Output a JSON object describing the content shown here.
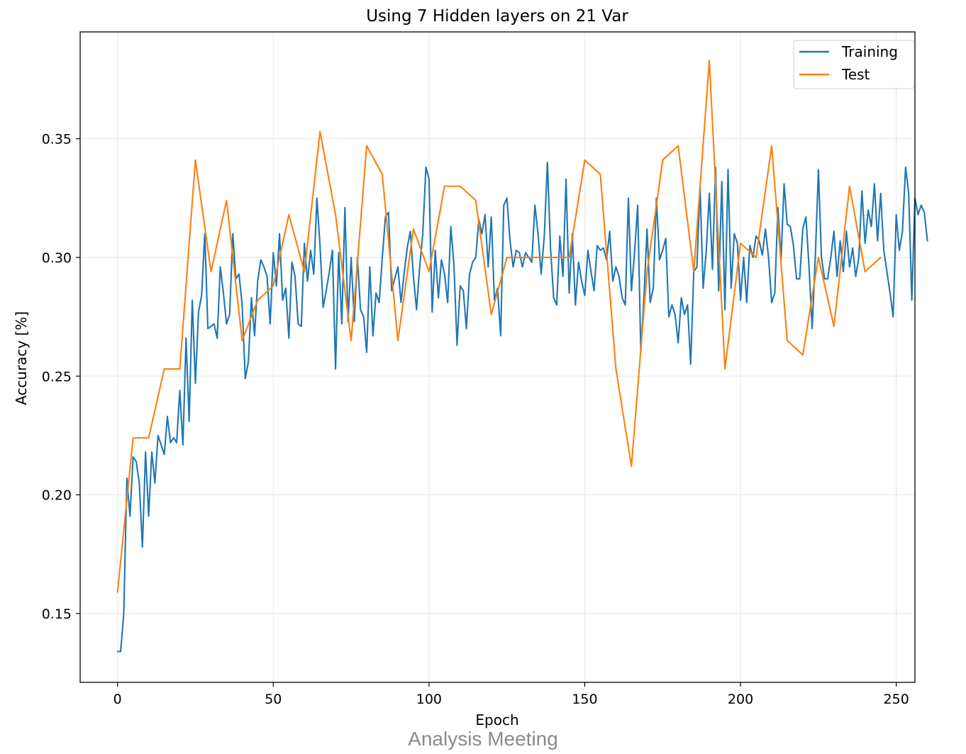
{
  "chart_data": {
    "type": "line",
    "title": "Using 7 Hidden layers on 21 Var",
    "xlabel": "Epoch",
    "ylabel": "Accuracy [%]",
    "xlim": [
      -12,
      256
    ],
    "ylim": [
      0.121,
      0.395
    ],
    "xticks": [
      0,
      50,
      100,
      150,
      200,
      250
    ],
    "yticks": [
      0.15,
      0.2,
      0.25,
      0.3,
      0.35
    ],
    "xtick_labels": [
      "0",
      "50",
      "100",
      "150",
      "200",
      "250"
    ],
    "ytick_labels": [
      "0.15",
      "0.20",
      "0.25",
      "0.30",
      "0.35"
    ],
    "grid": true,
    "legend": "top-right",
    "series": [
      {
        "name": "Training",
        "color": "#1f77b4",
        "x_start": 0,
        "x_step": 1,
        "values": [
          0.134,
          0.134,
          0.15,
          0.207,
          0.191,
          0.216,
          0.214,
          0.205,
          0.178,
          0.218,
          0.191,
          0.218,
          0.205,
          0.225,
          0.221,
          0.217,
          0.233,
          0.222,
          0.224,
          0.222,
          0.244,
          0.221,
          0.266,
          0.231,
          0.282,
          0.247,
          0.277,
          0.284,
          0.31,
          0.27,
          0.271,
          0.272,
          0.266,
          0.296,
          0.285,
          0.272,
          0.276,
          0.31,
          0.291,
          0.293,
          0.28,
          0.249,
          0.256,
          0.283,
          0.267,
          0.29,
          0.299,
          0.296,
          0.292,
          0.272,
          0.302,
          0.288,
          0.31,
          0.282,
          0.287,
          0.266,
          0.298,
          0.292,
          0.272,
          0.271,
          0.306,
          0.29,
          0.303,
          0.293,
          0.325,
          0.305,
          0.279,
          0.286,
          0.294,
          0.303,
          0.253,
          0.302,
          0.272,
          0.321,
          0.273,
          0.3,
          0.273,
          0.3,
          0.278,
          0.275,
          0.26,
          0.296,
          0.267,
          0.285,
          0.281,
          0.3,
          0.317,
          0.319,
          0.286,
          0.291,
          0.296,
          0.281,
          0.293,
          0.304,
          0.311,
          0.292,
          0.278,
          0.296,
          0.31,
          0.338,
          0.333,
          0.277,
          0.303,
          0.283,
          0.299,
          0.293,
          0.281,
          0.313,
          0.297,
          0.263,
          0.288,
          0.286,
          0.27,
          0.293,
          0.298,
          0.3,
          0.316,
          0.31,
          0.318,
          0.296,
          0.317,
          0.282,
          0.287,
          0.267,
          0.322,
          0.325,
          0.307,
          0.296,
          0.303,
          0.302,
          0.296,
          0.302,
          0.3,
          0.298,
          0.322,
          0.31,
          0.293,
          0.309,
          0.34,
          0.304,
          0.283,
          0.28,
          0.309,
          0.292,
          0.333,
          0.285,
          0.31,
          0.28,
          0.298,
          0.29,
          0.284,
          0.303,
          0.294,
          0.286,
          0.305,
          0.303,
          0.304,
          0.299,
          0.311,
          0.29,
          0.296,
          0.292,
          0.283,
          0.28,
          0.325,
          0.286,
          0.302,
          0.322,
          0.26,
          0.283,
          0.312,
          0.281,
          0.287,
          0.325,
          0.299,
          0.303,
          0.308,
          0.275,
          0.28,
          0.276,
          0.264,
          0.283,
          0.276,
          0.28,
          0.255,
          0.294,
          0.296,
          0.33,
          0.287,
          0.303,
          0.327,
          0.295,
          0.338,
          0.286,
          0.332,
          0.278,
          0.337,
          0.287,
          0.31,
          0.306,
          0.282,
          0.3,
          0.281,
          0.305,
          0.3,
          0.309,
          0.307,
          0.301,
          0.312,
          0.3,
          0.281,
          0.285,
          0.321,
          0.299,
          0.331,
          0.314,
          0.313,
          0.305,
          0.291,
          0.291,
          0.312,
          0.317,
          0.296,
          0.27,
          0.3,
          0.337,
          0.3,
          0.291,
          0.291,
          0.3,
          0.311,
          0.292,
          0.307,
          0.294,
          0.311,
          0.296,
          0.304,
          0.292,
          0.3,
          0.328,
          0.306,
          0.32,
          0.313,
          0.331,
          0.307,
          0.327,
          0.303,
          0.294,
          0.285,
          0.275,
          0.318,
          0.303,
          0.311,
          0.338,
          0.327,
          0.282,
          0.325,
          0.318,
          0.322,
          0.319,
          0.307
        ]
      },
      {
        "name": "Test",
        "color": "#ff7f0e",
        "x": [
          0,
          5,
          10,
          15,
          20,
          25,
          30,
          35,
          40,
          45,
          50,
          55,
          60,
          65,
          70,
          75,
          80,
          85,
          90,
          95,
          100,
          105,
          110,
          115,
          120,
          125,
          130,
          135,
          140,
          145,
          150,
          155,
          160,
          165,
          170,
          175,
          180,
          185,
          190,
          195,
          200,
          205,
          210,
          215,
          220,
          225,
          230,
          235,
          240,
          245
        ],
        "values": [
          0.159,
          0.224,
          0.224,
          0.253,
          0.253,
          0.341,
          0.294,
          0.324,
          0.265,
          0.282,
          0.288,
          0.318,
          0.294,
          0.353,
          0.318,
          0.265,
          0.347,
          0.335,
          0.265,
          0.312,
          0.294,
          0.33,
          0.33,
          0.324,
          0.276,
          0.3,
          0.3,
          0.3,
          0.3,
          0.3,
          0.341,
          0.335,
          0.253,
          0.212,
          0.294,
          0.341,
          0.347,
          0.294,
          0.383,
          0.253,
          0.306,
          0.3,
          0.347,
          0.265,
          0.259,
          0.3,
          0.271,
          0.33,
          0.294,
          0.3
        ]
      }
    ]
  },
  "footer": {
    "text": "Analysis Meeting"
  }
}
